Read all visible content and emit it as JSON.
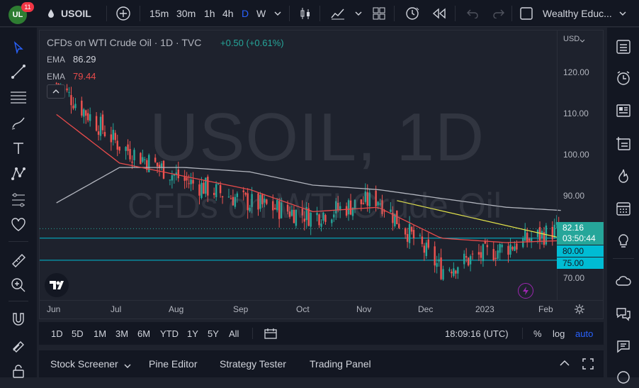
{
  "topbar": {
    "notif_count": "11",
    "symbol": "USOIL",
    "intervals": [
      "15m",
      "30m",
      "1h",
      "4h",
      "D",
      "W"
    ],
    "active_interval": "D",
    "account_label": "Wealthy Educ..."
  },
  "legend": {
    "title": "CFDs on WTI Crude Oil · 1D · TVC",
    "change": "+0.50 (+0.61%)",
    "ema1_label": "EMA",
    "ema1_value": "86.29",
    "ema2_label": "EMA",
    "ema2_value": "79.44"
  },
  "watermark": {
    "main": "USOIL, 1D",
    "sub": "CFDs on WTI Crude Oil"
  },
  "price_axis": {
    "currency": "USD",
    "ticks": [
      "120.00",
      "110.00",
      "100.00",
      "90.00",
      "80.00",
      "75.00",
      "70.00"
    ],
    "current_price": "82.16",
    "countdown": "03:50:44",
    "level1": "80.00",
    "level2": "75.00"
  },
  "time_axis": {
    "labels": [
      "Jun",
      "Jul",
      "Aug",
      "Sep",
      "Oct",
      "Nov",
      "Dec",
      "2023",
      "Feb"
    ]
  },
  "ranges": [
    "1D",
    "5D",
    "1M",
    "3M",
    "6M",
    "YTD",
    "1Y",
    "5Y",
    "All"
  ],
  "clock": "18:09:16 (UTC)",
  "scale_options": {
    "percent": "%",
    "log": "log",
    "auto": "auto"
  },
  "panels": [
    "Stock Screener",
    "Pine Editor",
    "Strategy Tester",
    "Trading Panel"
  ],
  "chart_data": {
    "type": "line",
    "x": [
      "2022-06-01",
      "2022-07-01",
      "2022-08-01",
      "2022-09-01",
      "2022-10-01",
      "2022-11-01",
      "2022-12-01",
      "2023-01-01",
      "2023-01-27"
    ],
    "series": [
      {
        "name": "USOIL close",
        "values": [
          115,
          101,
          93,
          88,
          85,
          89,
          73,
          78,
          82.16
        ]
      },
      {
        "name": "EMA",
        "values": [
          108,
          97,
          94,
          91,
          86,
          87,
          80,
          79,
          79.44
        ]
      },
      {
        "name": "EMA",
        "values": [
          88,
          96,
          96,
          95,
          92,
          91,
          89,
          87,
          86.29
        ]
      }
    ],
    "horizontal_levels": [
      80.0,
      75.0
    ],
    "ylim": [
      66,
      127
    ],
    "colors": {
      "up": "#26a69a",
      "down": "#ef5350",
      "ema_fast": "#e84b4b",
      "ema_slow": "#b2b5be",
      "trendline": "#e5e54b",
      "levels": "#00bcd4"
    }
  }
}
